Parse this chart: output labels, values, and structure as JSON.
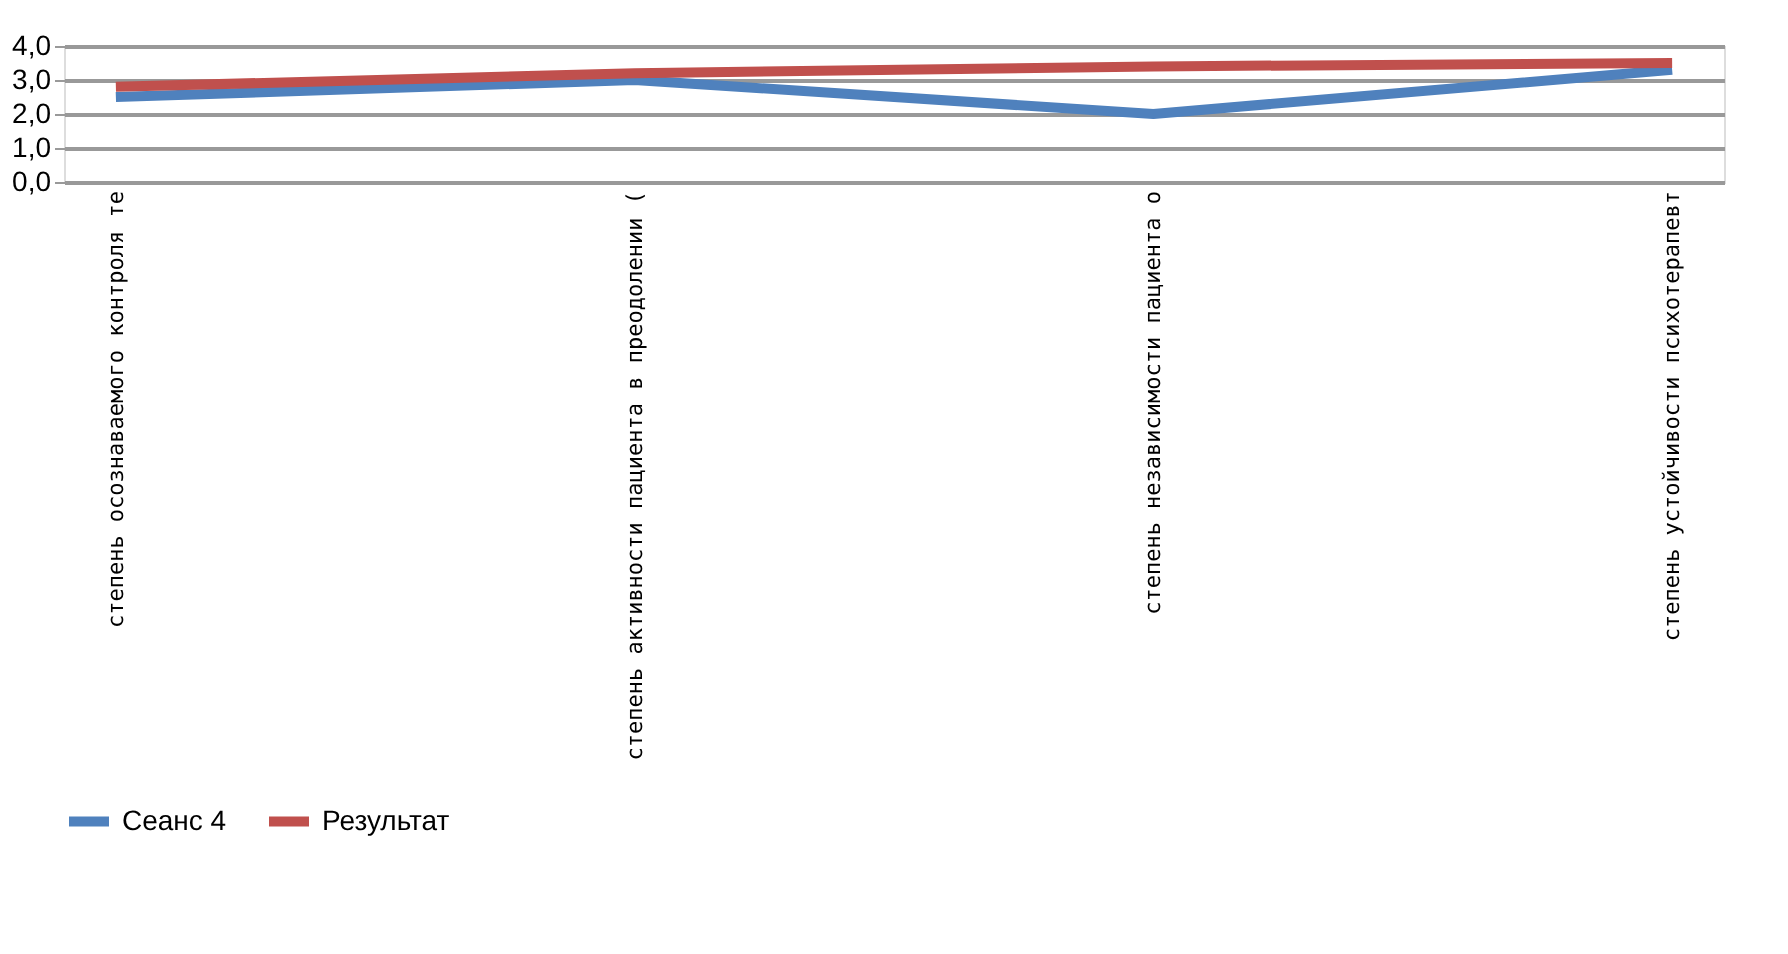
{
  "chart_data": {
    "type": "line",
    "categories": [
      "степень осознаваемого контроля те",
      "степень активности пациента в преодолении (",
      "степень независимости пациента о",
      "степень устойчивости психотерапевт"
    ],
    "series": [
      {
        "name": "Сеанс 4",
        "color": "#4f81bd",
        "values": [
          2.5,
          3.0,
          2.0,
          3.3
        ]
      },
      {
        "name": "Результат",
        "color": "#c0504d",
        "values": [
          2.8,
          3.2,
          3.4,
          3.5
        ]
      }
    ],
    "ylim": [
      0,
      4
    ],
    "yticks": [
      {
        "value": 0,
        "label": "0,0"
      },
      {
        "value": 1,
        "label": "1,0"
      },
      {
        "value": 2,
        "label": "2,0"
      },
      {
        "value": 3,
        "label": "3,0"
      },
      {
        "value": 4,
        "label": "4,0"
      }
    ],
    "grid": "y",
    "legend": "bottom",
    "line_style": "solid"
  }
}
